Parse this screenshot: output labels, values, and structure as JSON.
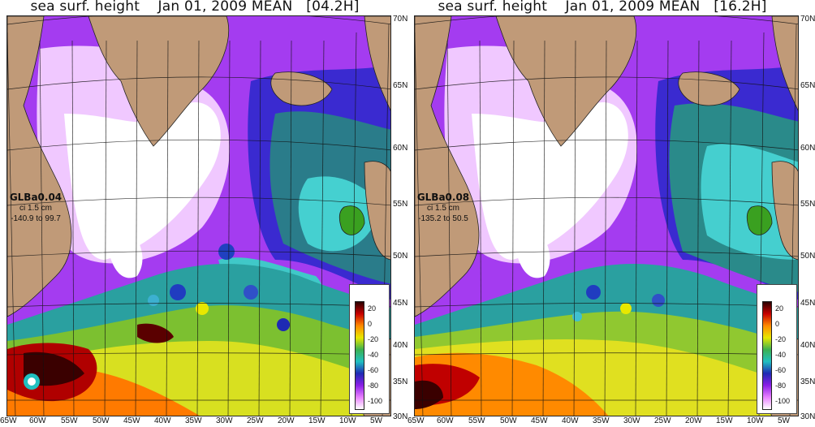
{
  "panels": [
    {
      "title": "sea surf. height    Jan 01, 2009 MEAN   [04.2H]",
      "model": "GLBa0.04",
      "ci": "ci 1.5 cm",
      "range": "-140.9 to 99.7"
    },
    {
      "title": "sea surf. height    Jan 01, 2009 MEAN   [16.2H]",
      "model": "GLBa0.08",
      "ci": "ci 1.5 cm",
      "range": "-135.2 to 50.5"
    }
  ],
  "lat_labels": [
    "70N",
    "65N",
    "60N",
    "55N",
    "50N",
    "45N",
    "40N",
    "35N",
    "30N"
  ],
  "lon_labels": [
    "65W",
    "60W",
    "55W",
    "50W",
    "45W",
    "40W",
    "35W",
    "30W",
    "25W",
    "20W",
    "15W",
    "10W",
    "5W"
  ],
  "colorbar": {
    "ticks": [
      "20",
      "0",
      "-20",
      "-40",
      "-60",
      "-80",
      "-100"
    ],
    "colors": [
      "#2a0000",
      "#c80000",
      "#ff8a00",
      "#e8e800",
      "#3cb050",
      "#20c0c0",
      "#1e2ab4",
      "#8a1fe6",
      "#e880ff",
      "#ffffff"
    ]
  },
  "colors": {
    "land": "#c09a78",
    "gyre_white": "#ffffff",
    "subpolar_violet": "#b040f0",
    "slope_blue": "#3020c0",
    "teal": "#2a8a8a",
    "cyan": "#40d8d0",
    "subtropical_yellow": "#d8e020",
    "green": "#6aba30",
    "orange": "#ff8000",
    "red": "#d00000"
  }
}
